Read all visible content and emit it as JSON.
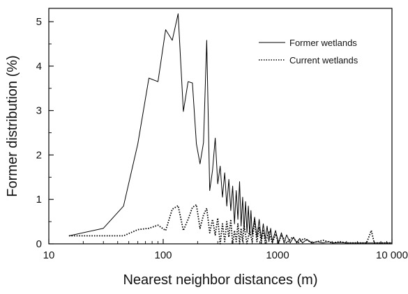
{
  "chart_data": {
    "type": "line",
    "xlabel": "Nearest neighbor distances (m)",
    "ylabel": "Former distribution (%)",
    "xscale": "log",
    "xlim": [
      10,
      10000
    ],
    "ylim": [
      0,
      5.3
    ],
    "x_ticks": [
      10,
      100,
      1000,
      10000
    ],
    "x_tick_labels": [
      "10",
      "100",
      "1000",
      "10 000"
    ],
    "y_ticks": [
      0,
      1,
      2,
      3,
      4,
      5
    ],
    "y_tick_labels": [
      "0",
      "1",
      "2",
      "3",
      "4",
      "5"
    ],
    "grid": false,
    "legend_position": "top-right",
    "series": [
      {
        "name": "Former wetlands",
        "style": "solid",
        "color": "#000000",
        "x": [
          15,
          30,
          45,
          60,
          75,
          90,
          105,
          120,
          135,
          150,
          165,
          180,
          195,
          210,
          225,
          240,
          255,
          270,
          285,
          300,
          315,
          330,
          345,
          360,
          375,
          390,
          405,
          420,
          435,
          450,
          465,
          480,
          495,
          510,
          525,
          540,
          555,
          570,
          585,
          600,
          630,
          660,
          690,
          720,
          750,
          780,
          810,
          840,
          870,
          900,
          960,
          1020,
          1080,
          1140,
          1200,
          1290,
          1380,
          1470,
          1560,
          1650,
          1800,
          2000,
          2200,
          2500,
          2800,
          3100,
          3500,
          4000,
          5000,
          6000,
          7000,
          8000,
          10000
        ],
        "y": [
          0.18,
          0.35,
          0.85,
          2.25,
          3.73,
          3.65,
          4.82,
          4.58,
          5.18,
          2.98,
          3.65,
          3.62,
          2.25,
          1.8,
          2.28,
          4.58,
          1.2,
          1.65,
          2.38,
          1.35,
          1.75,
          1.05,
          1.6,
          0.85,
          1.45,
          0.75,
          1.3,
          0.45,
          1.2,
          0.55,
          1.4,
          0.4,
          1.05,
          0.3,
          0.95,
          0.25,
          0.85,
          0.2,
          0.75,
          0.2,
          0.6,
          0.15,
          0.55,
          0.1,
          0.45,
          0.1,
          0.4,
          0.05,
          0.35,
          0.05,
          0.3,
          0.02,
          0.25,
          0.02,
          0.2,
          0.02,
          0.15,
          0.02,
          0.12,
          0.02,
          0.1,
          0.02,
          0.05,
          0.02,
          0.05,
          0.02,
          0.03,
          0.02,
          0.02,
          0.02,
          0.02,
          0.02,
          0.02
        ]
      },
      {
        "name": "Current wetlands",
        "style": "dotted",
        "color": "#000000",
        "x": [
          15,
          30,
          45,
          60,
          75,
          90,
          105,
          120,
          135,
          150,
          165,
          180,
          195,
          210,
          225,
          240,
          255,
          270,
          285,
          300,
          315,
          330,
          345,
          360,
          375,
          390,
          405,
          420,
          435,
          450,
          465,
          480,
          495,
          510,
          540,
          570,
          600,
          630,
          660,
          690,
          720,
          750,
          780,
          840,
          900,
          960,
          1020,
          1080,
          1200,
          1350,
          1500,
          1700,
          2000,
          2500,
          3000,
          3500,
          4000,
          5000,
          6000,
          6600,
          7000,
          8000,
          10000
        ],
        "y": [
          0.18,
          0.18,
          0.18,
          0.32,
          0.35,
          0.42,
          0.3,
          0.78,
          0.86,
          0.3,
          0.55,
          0.82,
          0.88,
          0.35,
          0.65,
          0.8,
          0.25,
          0.55,
          0.2,
          0.58,
          0.0,
          0.45,
          0.05,
          0.5,
          0.15,
          0.55,
          0.0,
          0.3,
          0.05,
          0.45,
          0.0,
          0.35,
          0.05,
          0.42,
          0.0,
          0.3,
          0.05,
          0.5,
          0.05,
          0.38,
          0.02,
          0.32,
          0.02,
          0.28,
          0.02,
          0.22,
          0.02,
          0.2,
          0.02,
          0.15,
          0.02,
          0.12,
          0.02,
          0.08,
          0.02,
          0.05,
          0.02,
          0.02,
          0.02,
          0.3,
          0.02,
          0.02,
          0.02
        ]
      }
    ]
  }
}
